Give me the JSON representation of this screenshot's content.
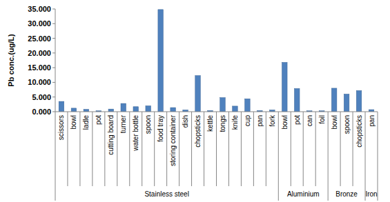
{
  "chart_data": {
    "type": "bar",
    "y_label": "Pb conc.(ug/L)",
    "categories": [
      "scissors",
      "bowl",
      "ladle",
      "pot",
      "cutting board",
      "turner",
      "water bottle",
      "spoon",
      "food tray",
      "storing container",
      "dish",
      "chopsticks",
      "kettle",
      "tongs",
      "knife",
      "cup",
      "pan",
      "fork",
      "bowl",
      "pot",
      "can",
      "foil",
      "bowl",
      "spoon",
      "chopsticks",
      "pan"
    ],
    "values": [
      3.5,
      1.2,
      0.8,
      0.3,
      0.9,
      2.8,
      1.7,
      2.0,
      34.8,
      1.4,
      0.6,
      12.3,
      0.4,
      4.8,
      1.9,
      4.4,
      0.4,
      0.6,
      16.8,
      7.9,
      0.3,
      0.3,
      8.0,
      6.0,
      7.2,
      0.7
    ],
    "groups": [
      {
        "label": "Stainless steel",
        "size": 18
      },
      {
        "label": "Aluminium",
        "size": 4
      },
      {
        "label": "Bronze",
        "size": 3
      },
      {
        "label": "Iron",
        "size": 1
      }
    ],
    "color": "#4f81bd",
    "ylim": [
      0,
      35
    ],
    "yticks": [
      {
        "value": 0,
        "label": "0.000"
      },
      {
        "value": 5,
        "label": "5.000"
      },
      {
        "value": 10,
        "label": "10.000"
      },
      {
        "value": 15,
        "label": "15.000"
      },
      {
        "value": 20,
        "label": "20.000"
      },
      {
        "value": 25,
        "label": "25.000"
      },
      {
        "value": 30,
        "label": "30.000"
      },
      {
        "value": 35,
        "label": "35.000"
      }
    ],
    "grid": false
  }
}
